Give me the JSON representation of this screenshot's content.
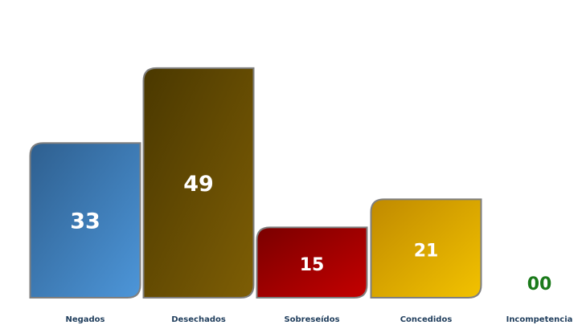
{
  "chart_data": {
    "type": "bar",
    "categories": [
      "Negados",
      "Desechados",
      "Sobreseídos",
      "Concedidos",
      "Incompetencia"
    ],
    "values": [
      33,
      49,
      15,
      21,
      0
    ],
    "value_labels": [
      "33",
      "49",
      "15",
      "21",
      "00"
    ],
    "colors": [
      [
        "#2e5f8f",
        "#4d96d9"
      ],
      [
        "#4a3800",
        "#7e5e05"
      ],
      [
        "#7a0000",
        "#c40000"
      ],
      [
        "#c08a00",
        "#f2c200"
      ],
      [
        "#1a7a1a",
        "#1a7a1a"
      ]
    ],
    "zero_label_color": "#1a7a1a",
    "border_color": "#7f7f7f",
    "title": "",
    "xlabel": "",
    "ylabel": "",
    "ylim": [
      0,
      52
    ],
    "grid": false,
    "legend": "none"
  }
}
